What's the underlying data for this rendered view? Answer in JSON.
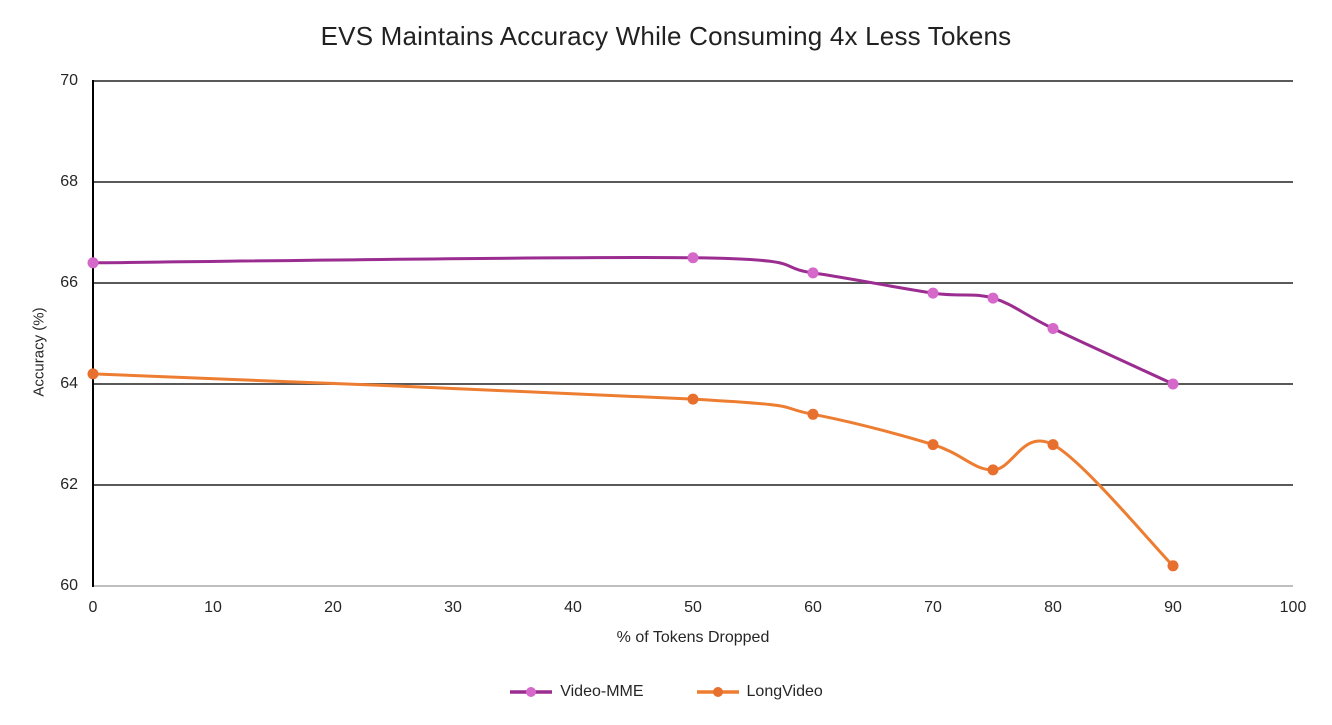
{
  "chart_data": {
    "type": "line",
    "title": "EVS Maintains Accuracy While Consuming 4x Less Tokens",
    "xlabel": "% of Tokens Dropped",
    "ylabel": "Accuracy (%)",
    "xlim": [
      0,
      100
    ],
    "ylim": [
      60,
      70
    ],
    "x_ticks": [
      0,
      10,
      20,
      30,
      40,
      50,
      60,
      70,
      80,
      90,
      100
    ],
    "y_ticks": [
      70,
      68,
      66,
      64,
      62,
      60
    ],
    "grid": true,
    "smooth_lines": true,
    "legend_position": "bottom",
    "x": [
      0,
      50,
      60,
      70,
      75,
      80,
      90
    ],
    "series": [
      {
        "name": "Video-MME",
        "line_color": "#9B2D91",
        "marker_color": "#D668CA",
        "values": [
          66.4,
          66.5,
          66.2,
          65.8,
          65.7,
          65.1,
          64.0
        ]
      },
      {
        "name": "LongVideo",
        "line_color": "#ED7D31",
        "marker_color": "#E8702E",
        "values": [
          64.2,
          63.7,
          63.4,
          62.8,
          62.3,
          62.8,
          60.4
        ]
      }
    ],
    "colors": {
      "gridline": "#595959",
      "y_axis": "#000000",
      "x_baseline": "#BFBFBF",
      "text": "#262626"
    }
  }
}
